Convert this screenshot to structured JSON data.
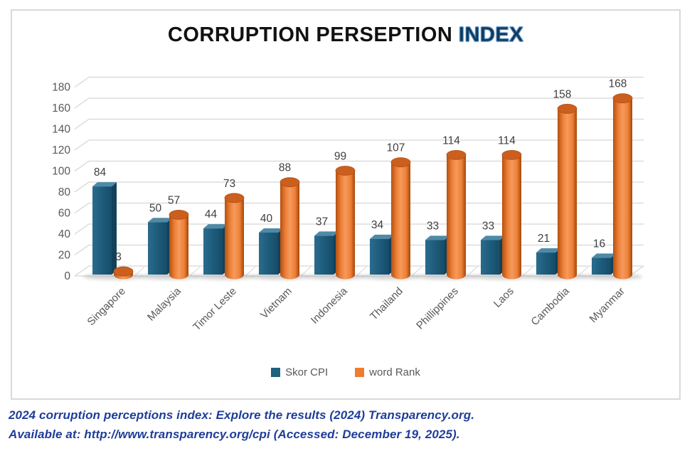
{
  "title": {
    "part1": "CORRUPTION PERSEPTION ",
    "part2": "INDEX"
  },
  "chart_data": {
    "type": "bar",
    "style": "3d-box-and-cylinder",
    "title": "CORRUPTION PERSEPTION INDEX",
    "categories": [
      "Singapore",
      "Malaysia",
      "Timor Leste",
      "Vietnam",
      "Indonesia",
      "Thailand",
      "Phillippines",
      "Laos",
      "Cambodia",
      "Myanmar"
    ],
    "series": [
      {
        "name": "Skor CPI",
        "color": "#20617F",
        "values": [
          84,
          50,
          44,
          40,
          37,
          34,
          33,
          33,
          21,
          16
        ]
      },
      {
        "name": "word Rank",
        "color": "#ED7D31",
        "values": [
          3,
          57,
          73,
          88,
          99,
          107,
          114,
          114,
          158,
          168
        ]
      }
    ],
    "ylim": [
      0,
      180
    ],
    "ytick_step": 20,
    "grid": true,
    "legend_position": "bottom",
    "xlabel": "",
    "ylabel": ""
  },
  "colors": {
    "cpi_front_light": "#2A6B8D",
    "cpi_front": "#1D5A7A",
    "cpi_front_dark": "#164C68",
    "cpi_top": "#4E8AA8",
    "cpi_side": "#12415A",
    "rank_edge_dark": "#B5500F",
    "rank_main": "#ED8038",
    "rank_highlight": "#F59A5C",
    "rank_shade": "#A34708",
    "rank_cap": "#CB5F1F",
    "gridline": "#D6D6D6",
    "axis_text": "#595959",
    "label_text": "#3F3F3F",
    "frame_border": "#D9D9D9",
    "title_text": "#111111",
    "title_accent": "#17364E",
    "title_accent_glow": "#2E75B6",
    "footer_text": "#1F3D99",
    "background": "#FFFFFF",
    "shadow": "#8C8C8C"
  },
  "footer": {
    "line1": "2024 corruption perceptions index: Explore the results (2024) Transparency.org.",
    "line2": "Available at: http://www.transparency.org/cpi (Accessed: December 19, 2025)."
  }
}
